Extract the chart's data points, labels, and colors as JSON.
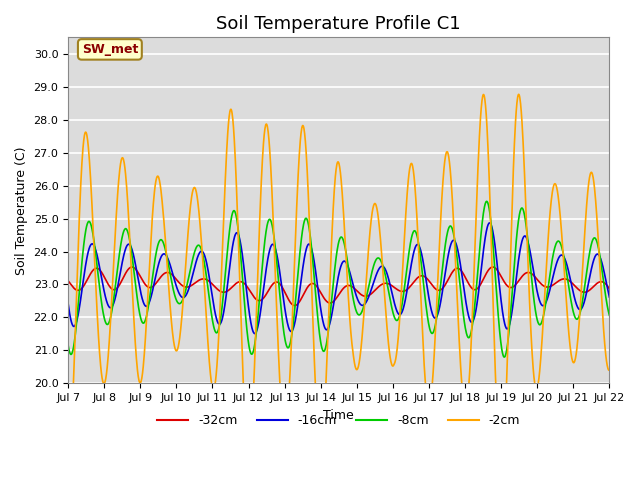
{
  "title": "Soil Temperature Profile C1",
  "xlabel": "Time",
  "ylabel": "Soil Temperature (C)",
  "ylim": [
    20.0,
    30.5
  ],
  "yticks": [
    20.0,
    21.0,
    22.0,
    23.0,
    24.0,
    25.0,
    26.0,
    27.0,
    28.0,
    29.0,
    30.0
  ],
  "x_labels": [
    "Jul 7",
    "Jul 8",
    "Jul 9",
    "Jul 10",
    "Jul 11",
    "Jul 12",
    "Jul 13",
    "Jul 14",
    "Jul 15",
    "Jul 16",
    "Jul 17",
    "Jul 18",
    "Jul 19",
    "Jul 20",
    "Jul 21",
    "Jul 22"
  ],
  "label_32cm": "-32cm",
  "label_16cm": "-16cm",
  "label_8cm": "-8cm",
  "label_2cm": "-2cm",
  "color_32cm": "#dd0000",
  "color_16cm": "#0000dd",
  "color_8cm": "#00cc00",
  "color_2cm": "#ffa500",
  "annotation_text": "SW_met",
  "annotation_color": "#8b0000",
  "annotation_bg": "#ffffcc",
  "bg_color": "#dcdcdc",
  "title_fontsize": 13,
  "axis_label_fontsize": 9,
  "tick_fontsize": 8,
  "legend_fontsize": 9,
  "n_points": 1500,
  "days": 15,
  "linewidth": 1.2
}
